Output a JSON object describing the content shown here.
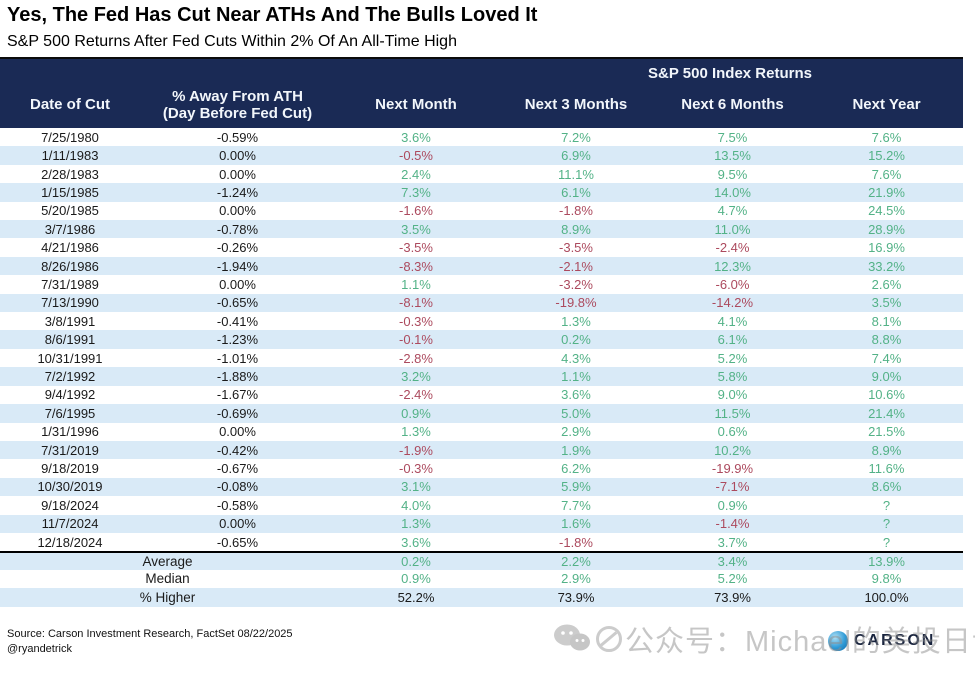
{
  "header": {
    "title": "Yes, The Fed Has Cut Near ATHs And The Bulls Loved It",
    "subtitle": "S&P 500 Returns After Fed Cuts Within 2% Of An All-Time High"
  },
  "chart_data": {
    "type": "table",
    "title": "Yes, The Fed Has Cut Near ATHs And The Bulls Loved It",
    "subtitle": "S&P 500 Returns After Fed Cuts Within 2% Of An All-Time High",
    "group_header": "S&P 500 Index Returns",
    "columns": [
      "Date of Cut",
      "% Away From ATH\n(Day Before Fed Cut)",
      "Next Month",
      "Next 3 Months",
      "Next 6 Months",
      "Next Year"
    ],
    "rows": [
      [
        "7/25/1980",
        "-0.59%",
        "3.6%",
        "7.2%",
        "7.5%",
        "7.6%"
      ],
      [
        "1/11/1983",
        "0.00%",
        "-0.5%",
        "6.9%",
        "13.5%",
        "15.2%"
      ],
      [
        "2/28/1983",
        "0.00%",
        "2.4%",
        "11.1%",
        "9.5%",
        "7.6%"
      ],
      [
        "1/15/1985",
        "-1.24%",
        "7.3%",
        "6.1%",
        "14.0%",
        "21.9%"
      ],
      [
        "5/20/1985",
        "0.00%",
        "-1.6%",
        "-1.8%",
        "4.7%",
        "24.5%"
      ],
      [
        "3/7/1986",
        "-0.78%",
        "3.5%",
        "8.9%",
        "11.0%",
        "28.9%"
      ],
      [
        "4/21/1986",
        "-0.26%",
        "-3.5%",
        "-3.5%",
        "-2.4%",
        "16.9%"
      ],
      [
        "8/26/1986",
        "-1.94%",
        "-8.3%",
        "-2.1%",
        "12.3%",
        "33.2%"
      ],
      [
        "7/31/1989",
        "0.00%",
        "1.1%",
        "-3.2%",
        "-6.0%",
        "2.6%"
      ],
      [
        "7/13/1990",
        "-0.65%",
        "-8.1%",
        "-19.8%",
        "-14.2%",
        "3.5%"
      ],
      [
        "3/8/1991",
        "-0.41%",
        "-0.3%",
        "1.3%",
        "4.1%",
        "8.1%"
      ],
      [
        "8/6/1991",
        "-1.23%",
        "-0.1%",
        "0.2%",
        "6.1%",
        "8.8%"
      ],
      [
        "10/31/1991",
        "-1.01%",
        "-2.8%",
        "4.3%",
        "5.2%",
        "7.4%"
      ],
      [
        "7/2/1992",
        "-1.88%",
        "3.2%",
        "1.1%",
        "5.8%",
        "9.0%"
      ],
      [
        "9/4/1992",
        "-1.67%",
        "-2.4%",
        "3.6%",
        "9.0%",
        "10.6%"
      ],
      [
        "7/6/1995",
        "-0.69%",
        "0.9%",
        "5.0%",
        "11.5%",
        "21.4%"
      ],
      [
        "1/31/1996",
        "0.00%",
        "1.3%",
        "2.9%",
        "0.6%",
        "21.5%"
      ],
      [
        "7/31/2019",
        "-0.42%",
        "-1.9%",
        "1.9%",
        "10.2%",
        "8.9%"
      ],
      [
        "9/18/2019",
        "-0.67%",
        "-0.3%",
        "6.2%",
        "-19.9%",
        "11.6%"
      ],
      [
        "10/30/2019",
        "-0.08%",
        "3.1%",
        "5.9%",
        "-7.1%",
        "8.6%"
      ],
      [
        "9/18/2024",
        "-0.58%",
        "4.0%",
        "7.7%",
        "0.9%",
        "?"
      ],
      [
        "11/7/2024",
        "0.00%",
        "1.3%",
        "1.6%",
        "-1.4%",
        "?"
      ],
      [
        "12/18/2024",
        "-0.65%",
        "3.6%",
        "-1.8%",
        "3.7%",
        "?"
      ]
    ],
    "summary_rows": [
      {
        "label": "Average",
        "values": [
          "0.2%",
          "2.2%",
          "3.4%",
          "13.9%"
        ],
        "value_style": "signed"
      },
      {
        "label": "Median",
        "values": [
          "0.9%",
          "2.9%",
          "5.2%",
          "9.8%"
        ],
        "value_style": "signed"
      },
      {
        "label": "% Higher",
        "values": [
          "52.2%",
          "73.9%",
          "73.9%",
          "100.0%"
        ],
        "value_style": "plain"
      }
    ],
    "colors": {
      "header_bg": "#1A2A55",
      "stripe": "#D9EAF7",
      "positive": "#53B287",
      "negative": "#AC4A5E",
      "plain_text": "#1a1a1a"
    }
  },
  "footer": {
    "source_line1": "Source: Carson Investment Research, FactSet 08/22/2025",
    "source_line2": "@ryandetrick",
    "watermark_text": "公众号：Michael的美投日记",
    "logo_text": "CARSON"
  }
}
